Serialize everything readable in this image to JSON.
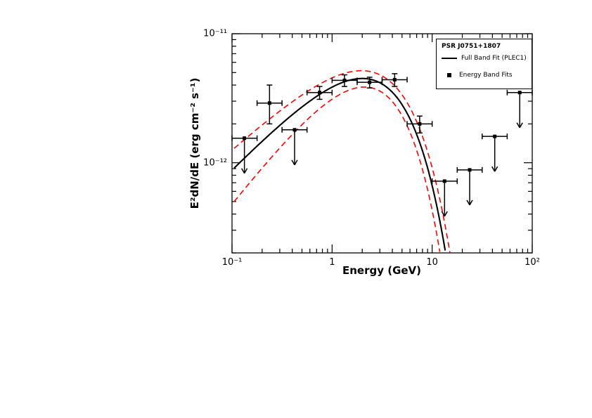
{
  "page": {
    "background": "#ffffff"
  },
  "chart_data": {
    "type": "scatter",
    "title": "PSR J0751+1807",
    "xlabel": "Energy (GeV)",
    "ylabel": "E²dN/dE (erg cm⁻² s⁻¹)",
    "xscale": "log",
    "yscale": "log",
    "xlim": [
      0.1,
      100
    ],
    "ylim": [
      2e-13,
      1e-11
    ],
    "x_ticks": [
      {
        "value": 0.1,
        "label": "10⁻¹"
      },
      {
        "value": 1,
        "label": "1"
      },
      {
        "value": 10,
        "label": "10"
      },
      {
        "value": 100,
        "label": "10²"
      }
    ],
    "y_ticks": [
      {
        "value": 1e-12,
        "label": "10⁻¹²"
      },
      {
        "value": 1e-11,
        "label": "10⁻¹¹"
      }
    ],
    "legend": {
      "title": "PSR J0751+1807",
      "position": "top-right",
      "entries": [
        {
          "label": "Full Band Fit (PLEC1)",
          "style": "line",
          "color": "#000000"
        },
        {
          "label": "Energy Band Fits",
          "style": "marker",
          "color": "#000000"
        }
      ]
    },
    "layout": {
      "grid": false,
      "frame": "box",
      "tick_direction": "in"
    },
    "colors": {
      "fit": "#000000",
      "uncertainty_band": "#ff0000",
      "data": "#000000"
    },
    "series": [
      {
        "name": "Energy Band Fits",
        "type": "scatter",
        "color": "#000000",
        "marker": "filled-square",
        "points": [
          {
            "E": 0.133,
            "E_lo": 0.1,
            "E_hi": 0.178,
            "F": 1.55e-12,
            "upper_limit": true
          },
          {
            "E": 0.237,
            "E_lo": 0.178,
            "E_hi": 0.316,
            "F": 2.9e-12,
            "F_lo": 2e-12,
            "F_hi": 4e-12,
            "upper_limit": false
          },
          {
            "E": 0.422,
            "E_lo": 0.316,
            "E_hi": 0.562,
            "F": 1.8e-12,
            "upper_limit": true
          },
          {
            "E": 0.75,
            "E_lo": 0.562,
            "E_hi": 1.0,
            "F": 3.5e-12,
            "F_lo": 3.1e-12,
            "F_hi": 3.9e-12,
            "upper_limit": false
          },
          {
            "E": 1.33,
            "E_lo": 1.0,
            "E_hi": 1.78,
            "F": 4.35e-12,
            "F_lo": 3.9e-12,
            "F_hi": 4.8e-12,
            "upper_limit": false
          },
          {
            "E": 2.37,
            "E_lo": 1.78,
            "E_hi": 3.16,
            "F": 4.2e-12,
            "F_lo": 3.8e-12,
            "F_hi": 4.6e-12,
            "upper_limit": false
          },
          {
            "E": 4.22,
            "E_lo": 3.16,
            "E_hi": 5.62,
            "F": 4.4e-12,
            "F_lo": 3.9e-12,
            "F_hi": 4.9e-12,
            "upper_limit": false
          },
          {
            "E": 7.5,
            "E_lo": 5.62,
            "E_hi": 10.0,
            "F": 2e-12,
            "F_lo": 1.7e-12,
            "F_hi": 2.3e-12,
            "upper_limit": false
          },
          {
            "E": 13.3,
            "E_lo": 10.0,
            "E_hi": 17.8,
            "F": 7.2e-13,
            "upper_limit": true
          },
          {
            "E": 23.7,
            "E_lo": 17.8,
            "E_hi": 31.6,
            "F": 8.8e-13,
            "upper_limit": true
          },
          {
            "E": 42.2,
            "E_lo": 31.6,
            "E_hi": 56.2,
            "F": 1.6e-12,
            "upper_limit": true
          },
          {
            "E": 75.0,
            "E_lo": 56.2,
            "E_hi": 100.0,
            "F": 3.5e-12,
            "upper_limit": true
          }
        ]
      },
      {
        "name": "Full Band Fit (PLEC1)",
        "type": "curve",
        "style": "solid",
        "color": "#000000",
        "model": "F(E) = K * E^(2-gamma) * exp(-E/Ecut)",
        "params": {
          "K": 5.75e-12,
          "gamma": 1.2,
          "Ecut": 2.5
        },
        "E_range": [
          0.105,
          100
        ]
      },
      {
        "name": "Fit Uncertainty Upper",
        "type": "curve",
        "style": "dashed",
        "color": "#ff0000",
        "model": "F(E) = K * E^(2-gamma) * exp(-E/Ecut)",
        "params": {
          "K": 6.5e-12,
          "gamma": 1.3,
          "Ecut": 2.8
        },
        "E_range": [
          0.105,
          100
        ]
      },
      {
        "name": "Fit Uncertainty Lower",
        "type": "curve",
        "style": "dashed",
        "color": "#ff0000",
        "model": "F(E) = K * E^(2-gamma) * exp(-E/Ecut)",
        "params": {
          "K": 5e-12,
          "gamma": 1.0,
          "Ecut": 2.1
        },
        "E_range": [
          0.105,
          100
        ]
      }
    ]
  }
}
